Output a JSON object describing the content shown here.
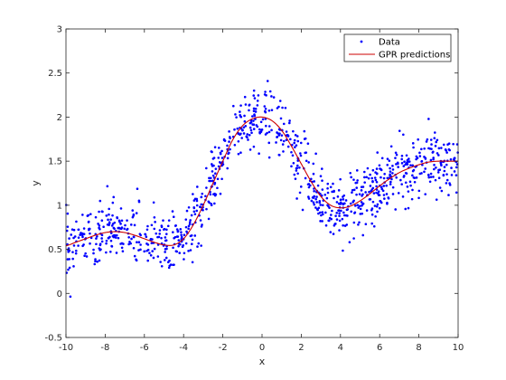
{
  "chart_data": {
    "type": "scatter",
    "xlabel": "x",
    "ylabel": "y",
    "xlim": [
      -10,
      10
    ],
    "ylim": [
      -0.5,
      3
    ],
    "xticks": [
      -10,
      -8,
      -6,
      -4,
      -2,
      0,
      2,
      4,
      6,
      8,
      10
    ],
    "yticks": [
      -0.5,
      0,
      0.5,
      1,
      1.5,
      2,
      2.5,
      3
    ],
    "xtick_labels": [
      "-10",
      "-8",
      "-6",
      "-4",
      "-2",
      "0",
      "2",
      "4",
      "6",
      "8",
      "10"
    ],
    "ytick_labels": [
      "-0.5",
      "0",
      "0.5",
      "1",
      "1.5",
      "2",
      "2.5",
      "3"
    ],
    "grid": false,
    "legend_position": "top-right",
    "colors": {
      "data": "#0000ff",
      "prediction": "#cc0000",
      "axes": "#262626"
    },
    "legend": [
      {
        "label": "Data",
        "marker": "dot"
      },
      {
        "label": "GPR predictions",
        "marker": "line"
      }
    ],
    "series": [
      {
        "name": "Data",
        "type": "scatter",
        "n_points_approx": 1000,
        "noise_sd_approx": 0.17,
        "x_range": [
          -10,
          10
        ],
        "follows": "GPR predictions"
      },
      {
        "name": "GPR predictions",
        "type": "line",
        "x": [
          -10,
          -9.5,
          -9,
          -8.5,
          -8,
          -7.5,
          -7,
          -6.5,
          -6,
          -5.5,
          -5,
          -4.5,
          -4,
          -3.5,
          -3,
          -2.5,
          -2,
          -1.5,
          -1,
          -0.5,
          0,
          0.5,
          1,
          1.5,
          2,
          2.5,
          3,
          3.5,
          4,
          4.5,
          5,
          5.5,
          6,
          6.5,
          7,
          7.5,
          8,
          8.5,
          9,
          9.5,
          10
        ],
        "y": [
          0.54,
          0.58,
          0.62,
          0.66,
          0.69,
          0.7,
          0.69,
          0.66,
          0.62,
          0.58,
          0.55,
          0.55,
          0.62,
          0.78,
          1.0,
          1.25,
          1.5,
          1.74,
          1.9,
          1.98,
          2.0,
          1.96,
          1.85,
          1.67,
          1.47,
          1.27,
          1.1,
          1.0,
          0.97,
          0.99,
          1.05,
          1.13,
          1.22,
          1.3,
          1.37,
          1.42,
          1.46,
          1.49,
          1.5,
          1.5,
          1.5
        ]
      }
    ]
  }
}
